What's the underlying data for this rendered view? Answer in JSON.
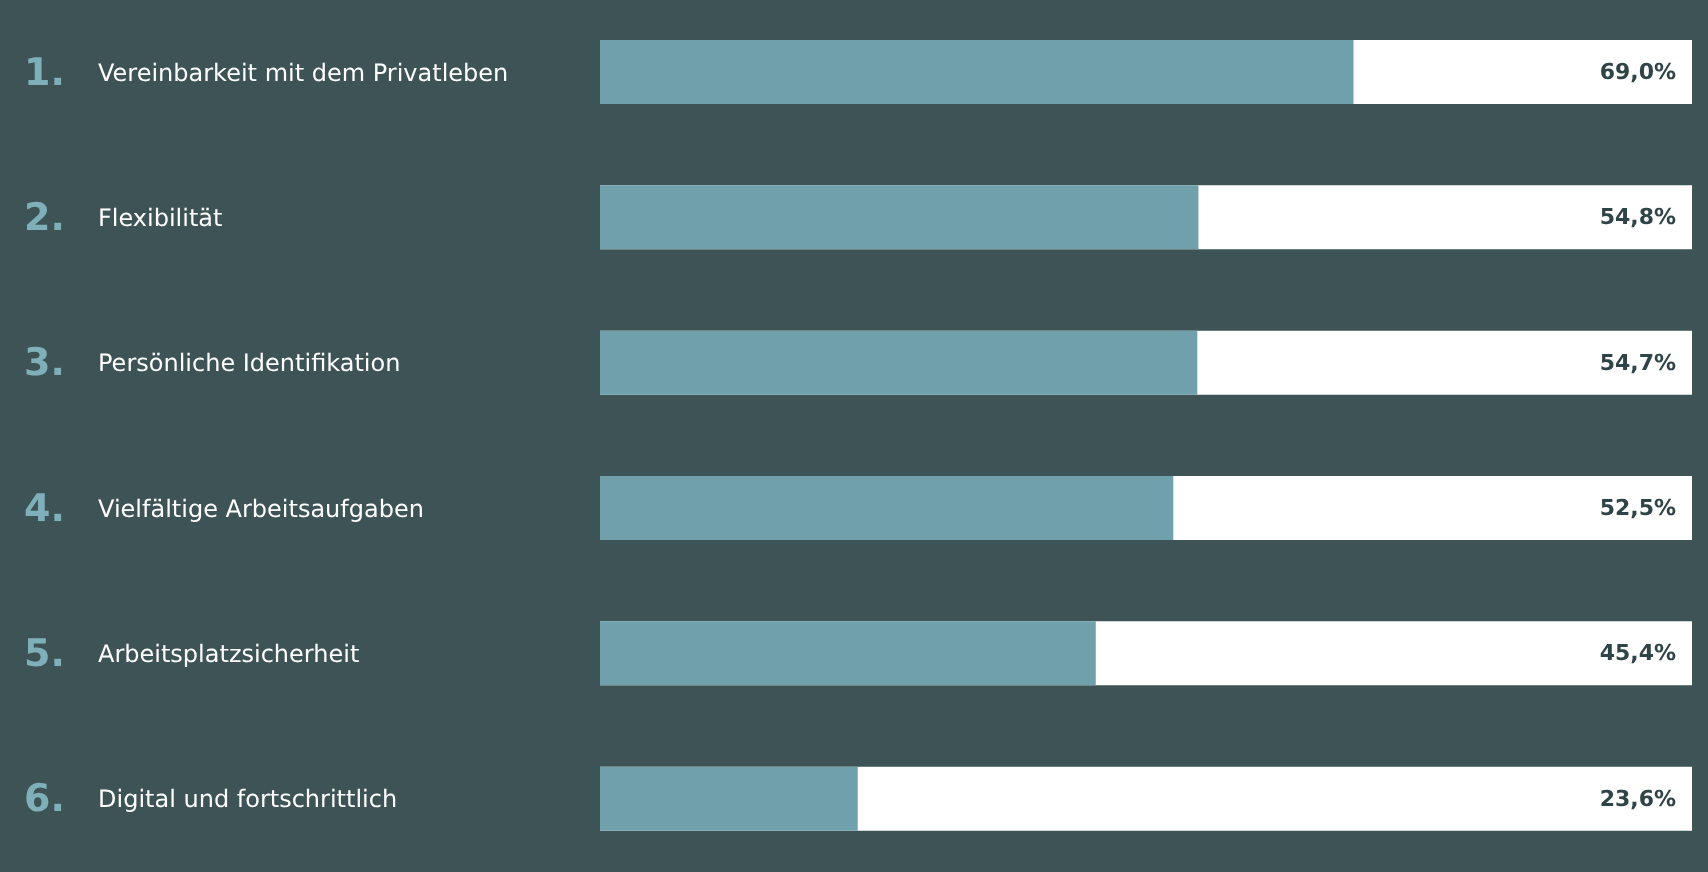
{
  "chart_data": {
    "type": "bar",
    "orientation": "horizontal",
    "categories": [
      "1. Vereinbarkeit mit dem Privatleben",
      "2. Flexibilität",
      "3. Persönliche Identifikation",
      "4. Vielfältige Arbeitsaufgaben",
      "5. Arbeitsplatzsicherheit",
      "6. Digital und fortschrittlich"
    ],
    "values": [
      69.0,
      54.8,
      54.7,
      52.5,
      45.4,
      23.6
    ],
    "value_labels": [
      "69,0%",
      "54,8%",
      "54,7%",
      "52,5%",
      "45,4%",
      "23,6%"
    ],
    "color": "#6fa0ab",
    "xlim": [
      0,
      100
    ],
    "tick_labels": "y"
  }
}
